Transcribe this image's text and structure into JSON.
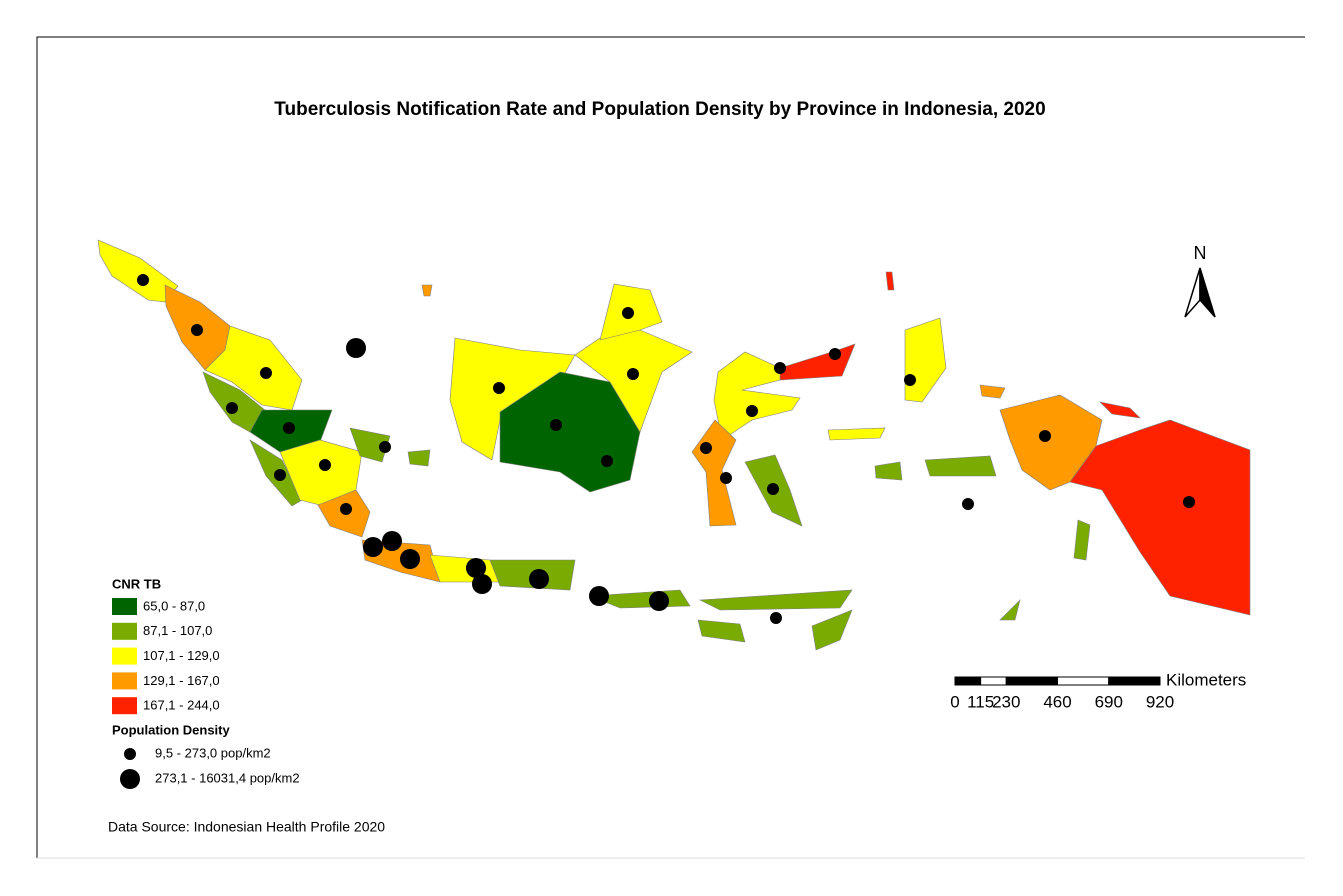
{
  "title": "Tuberculosis Notification Rate and Population Density by Province in Indonesia, 2020",
  "north": "N",
  "legend": {
    "cnr_title": "CNR TB",
    "cnr_classes": [
      {
        "label": "65,0 - 87,0",
        "color": "#006400"
      },
      {
        "label": "87,1 - 107,0",
        "color": "#7aab00"
      },
      {
        "label": "107,1 - 129,0",
        "color": "#ffff00"
      },
      {
        "label": "129,1 - 167,0",
        "color": "#ff9a00"
      },
      {
        "label": "167,1 - 244,0",
        "color": "#ff2200"
      }
    ],
    "density_title": "Population Density",
    "density_classes": [
      "9,5 - 273,0 pop/km2",
      "273,1 - 16031,4 pop/km2"
    ]
  },
  "scale_bar": {
    "unit": "Kilometers",
    "ticks": [
      0,
      115,
      230,
      460,
      690,
      920
    ]
  },
  "source": "Data Source: Indonesian Health Profile 2020"
}
